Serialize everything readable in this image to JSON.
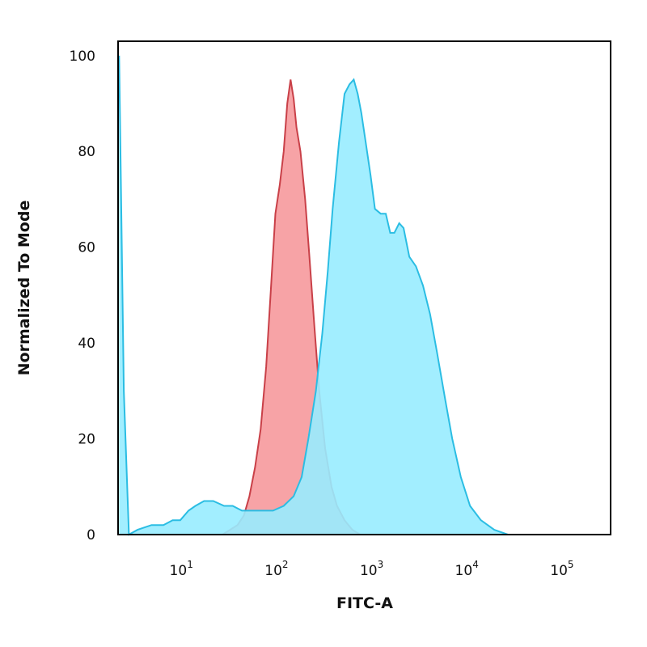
{
  "chart_data": {
    "type": "area",
    "xlabel": "FITC-A",
    "ylabel": "Normalized To Mode",
    "xscale": "log",
    "xlim": [
      2,
      300000
    ],
    "ylim": [
      0,
      103
    ],
    "yticks": [
      "0",
      "20",
      "40",
      "60",
      "80",
      "100"
    ],
    "xticks": [
      {
        "base": "10",
        "exp": "1"
      },
      {
        "base": "10",
        "exp": "2"
      },
      {
        "base": "10",
        "exp": "3"
      },
      {
        "base": "10",
        "exp": "4"
      },
      {
        "base": "10",
        "exp": "5"
      }
    ],
    "grid": false,
    "series": [
      {
        "fill": "#f7a3a6",
        "stroke": "#c94048",
        "points": [
          [
            25,
            0
          ],
          [
            30,
            1
          ],
          [
            36,
            2
          ],
          [
            42,
            4
          ],
          [
            48,
            8
          ],
          [
            55,
            14
          ],
          [
            63,
            22
          ],
          [
            72,
            35
          ],
          [
            80,
            50
          ],
          [
            90,
            67
          ],
          [
            100,
            73
          ],
          [
            110,
            80
          ],
          [
            120,
            90
          ],
          [
            130,
            95
          ],
          [
            140,
            91
          ],
          [
            150,
            85
          ],
          [
            165,
            80
          ],
          [
            185,
            70
          ],
          [
            205,
            58
          ],
          [
            230,
            44
          ],
          [
            260,
            30
          ],
          [
            300,
            18
          ],
          [
            350,
            10
          ],
          [
            400,
            6
          ],
          [
            480,
            3
          ],
          [
            580,
            1
          ],
          [
            700,
            0
          ]
        ]
      },
      {
        "fill": "#98ecff",
        "stroke": "#2bbde3",
        "points": [
          [
            2.05,
            100
          ],
          [
            2.3,
            30
          ],
          [
            2.6,
            0
          ],
          [
            3.2,
            1
          ],
          [
            4.5,
            2
          ],
          [
            6,
            2
          ],
          [
            7.5,
            3
          ],
          [
            9,
            3
          ],
          [
            11,
            5
          ],
          [
            13,
            6
          ],
          [
            16,
            7
          ],
          [
            20,
            7
          ],
          [
            26,
            6
          ],
          [
            32,
            6
          ],
          [
            40,
            5
          ],
          [
            50,
            5
          ],
          [
            65,
            5
          ],
          [
            85,
            5
          ],
          [
            110,
            6
          ],
          [
            140,
            8
          ],
          [
            170,
            12
          ],
          [
            200,
            20
          ],
          [
            240,
            30
          ],
          [
            280,
            42
          ],
          [
            320,
            55
          ],
          [
            360,
            68
          ],
          [
            420,
            82
          ],
          [
            480,
            92
          ],
          [
            540,
            94
          ],
          [
            600,
            95
          ],
          [
            660,
            92
          ],
          [
            720,
            88
          ],
          [
            800,
            82
          ],
          [
            900,
            75
          ],
          [
            1000,
            68
          ],
          [
            1150,
            67
          ],
          [
            1300,
            67
          ],
          [
            1450,
            63
          ],
          [
            1600,
            63
          ],
          [
            1800,
            65
          ],
          [
            2000,
            64
          ],
          [
            2300,
            58
          ],
          [
            2700,
            56
          ],
          [
            3200,
            52
          ],
          [
            3800,
            46
          ],
          [
            4500,
            38
          ],
          [
            5500,
            28
          ],
          [
            6500,
            20
          ],
          [
            8000,
            12
          ],
          [
            10000,
            6
          ],
          [
            13000,
            3
          ],
          [
            18000,
            1
          ],
          [
            25000,
            0
          ],
          [
            35000,
            0
          ]
        ]
      }
    ]
  }
}
